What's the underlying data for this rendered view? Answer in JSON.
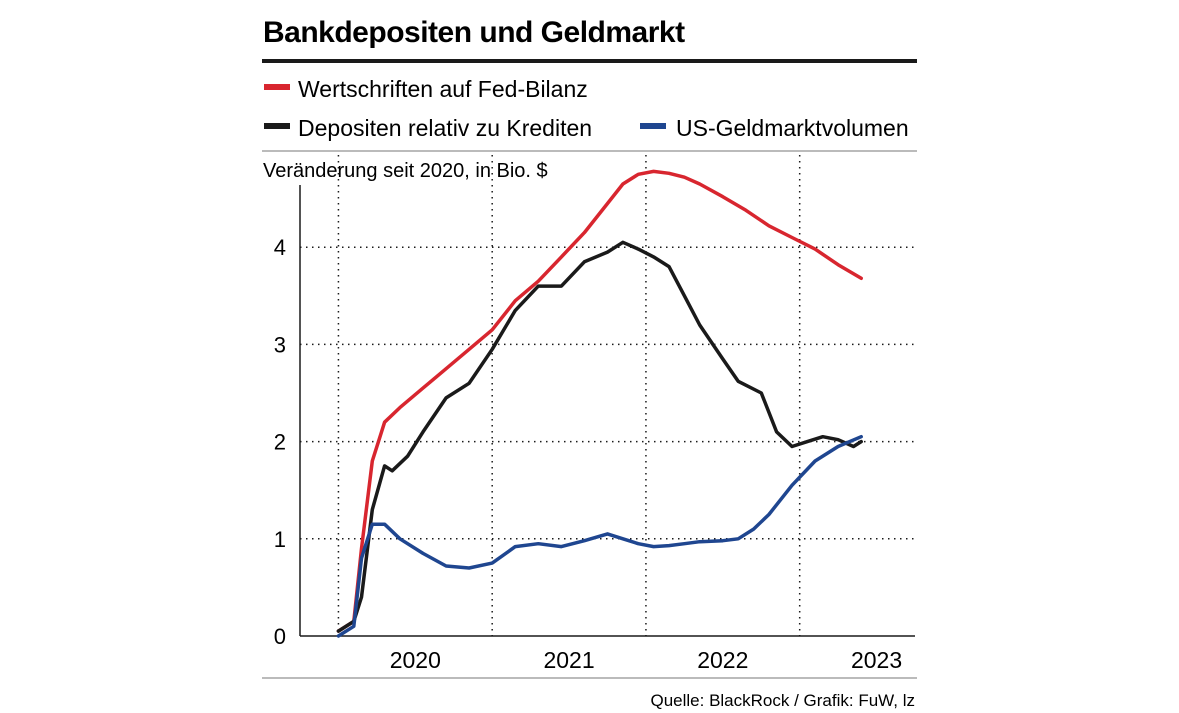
{
  "chart_data": {
    "type": "line",
    "title": "Bankdepositen und Geldmarkt",
    "subtitle": "Veränderung seit 2020, in Bio. $",
    "source": "Quelle: BlackRock / Grafik: FuW, lz",
    "ylim": [
      0,
      5
    ],
    "yticks": [
      0,
      1,
      2,
      3,
      4
    ],
    "xlim": [
      2019.75,
      2023.75
    ],
    "xticks": [
      {
        "label": "2020",
        "value": 2020.5
      },
      {
        "label": "2021",
        "value": 2021.5
      },
      {
        "label": "2022",
        "value": 2022.5
      },
      {
        "label": "2023",
        "value": 2023.5
      }
    ],
    "year_separators": [
      2020,
      2021,
      2022,
      2023
    ],
    "series": [
      {
        "name": "Wertschriften auf Fed-Bilanz",
        "color": "#d8262f",
        "x": [
          2020.0,
          2020.1,
          2020.15,
          2020.22,
          2020.3,
          2020.4,
          2020.55,
          2020.7,
          2020.85,
          2021.0,
          2021.15,
          2021.3,
          2021.45,
          2021.6,
          2021.75,
          2021.85,
          2021.95,
          2022.05,
          2022.15,
          2022.25,
          2022.35,
          2022.5,
          2022.65,
          2022.8,
          2022.95,
          2023.1,
          2023.25,
          2023.4
        ],
        "values": [
          0.05,
          0.15,
          0.9,
          1.8,
          2.2,
          2.35,
          2.55,
          2.75,
          2.95,
          3.15,
          3.45,
          3.65,
          3.9,
          4.15,
          4.45,
          4.65,
          4.75,
          4.78,
          4.76,
          4.72,
          4.65,
          4.52,
          4.38,
          4.22,
          4.1,
          3.98,
          3.82,
          3.68
        ]
      },
      {
        "name": "Depositen relativ zu Krediten",
        "color": "#1a1a1a",
        "x": [
          2020.0,
          2020.1,
          2020.15,
          2020.22,
          2020.3,
          2020.35,
          2020.45,
          2020.55,
          2020.7,
          2020.85,
          2021.0,
          2021.15,
          2021.3,
          2021.45,
          2021.6,
          2021.75,
          2021.85,
          2021.95,
          2022.05,
          2022.15,
          2022.25,
          2022.35,
          2022.5,
          2022.6,
          2022.75,
          2022.85,
          2022.95,
          2023.05,
          2023.15,
          2023.25,
          2023.35,
          2023.4
        ],
        "values": [
          0.05,
          0.15,
          0.4,
          1.3,
          1.75,
          1.7,
          1.85,
          2.1,
          2.45,
          2.6,
          2.95,
          3.35,
          3.6,
          3.6,
          3.85,
          3.95,
          4.05,
          3.98,
          3.9,
          3.8,
          3.5,
          3.2,
          2.85,
          2.62,
          2.5,
          2.1,
          1.95,
          2.0,
          2.05,
          2.02,
          1.95,
          2.0
        ]
      },
      {
        "name": "US-Geldmarktvolumen",
        "color": "#1f4690",
        "x": [
          2020.0,
          2020.1,
          2020.15,
          2020.22,
          2020.3,
          2020.4,
          2020.55,
          2020.7,
          2020.85,
          2021.0,
          2021.15,
          2021.3,
          2021.45,
          2021.6,
          2021.75,
          2021.85,
          2021.95,
          2022.05,
          2022.15,
          2022.25,
          2022.35,
          2022.5,
          2022.6,
          2022.7,
          2022.8,
          2022.95,
          2023.1,
          2023.25,
          2023.4
        ],
        "values": [
          0.0,
          0.1,
          0.8,
          1.15,
          1.15,
          1.0,
          0.85,
          0.72,
          0.7,
          0.75,
          0.92,
          0.95,
          0.92,
          0.98,
          1.05,
          1.0,
          0.95,
          0.92,
          0.93,
          0.95,
          0.97,
          0.98,
          1.0,
          1.1,
          1.25,
          1.55,
          1.8,
          1.95,
          2.05
        ]
      }
    ]
  }
}
